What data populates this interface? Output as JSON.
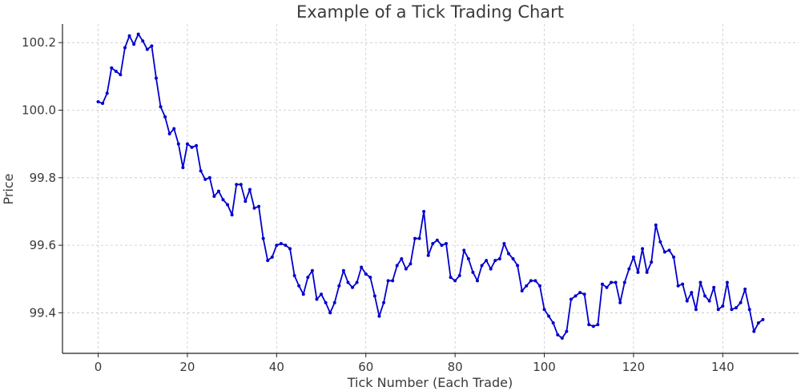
{
  "chart_data": {
    "type": "line",
    "title": "Example of a Tick Trading Chart",
    "xlabel": "Tick Number (Each Trade)",
    "ylabel": "Price",
    "xlim": [
      -8,
      157
    ],
    "ylim": [
      99.28,
      100.255
    ],
    "xticks": [
      0,
      20,
      40,
      60,
      80,
      100,
      120,
      140
    ],
    "yticks": [
      99.4,
      99.6,
      99.8,
      100.0,
      100.2
    ],
    "xtick_labels": [
      "0",
      "20",
      "40",
      "60",
      "80",
      "100",
      "120",
      "140"
    ],
    "ytick_labels": [
      "99.4",
      "99.6",
      "99.8",
      "100.0",
      "100.2"
    ],
    "grid": true,
    "line_color": "#0000cc",
    "marker": "dot",
    "x_start": 0,
    "x_step": 1,
    "values": [
      100.025,
      100.02,
      100.05,
      100.125,
      100.115,
      100.105,
      100.185,
      100.22,
      100.195,
      100.225,
      100.205,
      100.18,
      100.19,
      100.095,
      100.01,
      99.98,
      99.93,
      99.945,
      99.9,
      99.83,
      99.9,
      99.89,
      99.895,
      99.82,
      99.795,
      99.8,
      99.745,
      99.76,
      99.735,
      99.72,
      99.69,
      99.78,
      99.78,
      99.73,
      99.765,
      99.71,
      99.715,
      99.62,
      99.555,
      99.565,
      99.6,
      99.605,
      99.6,
      99.59,
      99.51,
      99.48,
      99.455,
      99.505,
      99.525,
      99.44,
      99.455,
      99.43,
      99.4,
      99.43,
      99.48,
      99.525,
      99.49,
      99.475,
      99.49,
      99.535,
      99.515,
      99.505,
      99.45,
      99.39,
      99.43,
      99.495,
      99.495,
      99.54,
      99.56,
      99.53,
      99.545,
      99.62,
      99.62,
      99.7,
      99.57,
      99.605,
      99.615,
      99.6,
      99.605,
      99.505,
      99.495,
      99.51,
      99.585,
      99.56,
      99.52,
      99.495,
      99.54,
      99.555,
      99.53,
      99.555,
      99.56,
      99.605,
      99.575,
      99.56,
      99.54,
      99.465,
      99.48,
      99.495,
      99.495,
      99.48,
      99.41,
      99.39,
      99.37,
      99.335,
      99.325,
      99.345,
      99.44,
      99.45,
      99.46,
      99.455,
      99.365,
      99.36,
      99.365,
      99.485,
      99.475,
      99.49,
      99.49,
      99.43,
      99.49,
      99.53,
      99.565,
      99.52,
      99.59,
      99.52,
      99.55,
      99.66,
      99.61,
      99.58,
      99.585,
      99.565,
      99.48,
      99.485,
      99.435,
      99.46,
      99.41,
      99.49,
      99.45,
      99.435,
      99.475,
      99.41,
      99.42,
      99.49,
      99.41,
      99.415,
      99.43,
      99.47,
      99.41,
      99.345,
      99.37,
      99.38
    ]
  }
}
